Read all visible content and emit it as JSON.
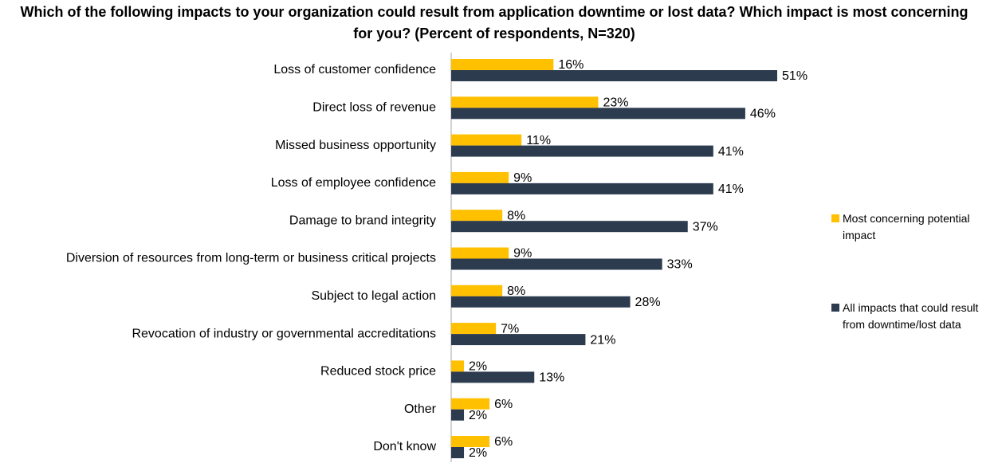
{
  "chart_data": {
    "type": "bar",
    "orientation": "horizontal",
    "title": "Which of the following impacts to your organization could result from application downtime or lost data? Which impact is most concerning for you? (Percent of respondents, N=320)",
    "categories": [
      "Loss of customer confidence",
      "Direct loss of revenue",
      "Missed business opportunity",
      "Loss of employee confidence",
      "Damage to brand integrity",
      "Diversion of resources from long-term or business critical projects",
      "Subject to legal action",
      "Revocation of industry or governmental accreditations",
      "Reduced stock price",
      "Other",
      "Don't know"
    ],
    "series": [
      {
        "name": "Most concerning potential impact",
        "color": "#ffc000",
        "values": [
          16,
          23,
          11,
          9,
          8,
          9,
          8,
          7,
          2,
          6,
          6
        ],
        "value_labels": [
          "16%",
          "23%",
          "11%",
          "9%",
          "8%",
          "9%",
          "8%",
          "7%",
          "2%",
          "6%",
          "6%"
        ]
      },
      {
        "name": "All impacts that could result from downtime/lost data",
        "color": "#2d3b4f",
        "values": [
          51,
          46,
          41,
          41,
          37,
          33,
          28,
          21,
          13,
          2,
          2
        ],
        "value_labels": [
          "51%",
          "46%",
          "41%",
          "41%",
          "37%",
          "33%",
          "28%",
          "21%",
          "13%",
          "2%",
          "2%"
        ]
      }
    ]
  }
}
